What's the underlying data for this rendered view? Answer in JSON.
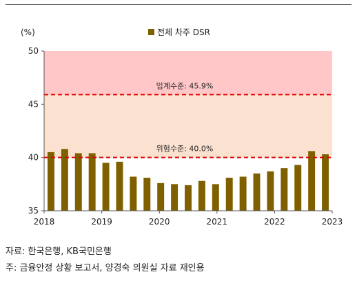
{
  "chart_data": {
    "type": "bar",
    "y_unit_label": "(%)",
    "ylim": [
      35,
      50
    ],
    "y_ticks": [
      "50",
      "45",
      "40",
      "35"
    ],
    "x_tick_labels": [
      "2018",
      "2019",
      "2020",
      "2021",
      "2022",
      "2023"
    ],
    "series": [
      {
        "name": "전체 차주 DSR",
        "color": "#7F6000",
        "values": [
          40.5,
          40.8,
          40.4,
          40.4,
          39.5,
          39.6,
          38.2,
          38.1,
          37.6,
          37.5,
          37.4,
          37.8,
          37.5,
          38.1,
          38.2,
          38.5,
          38.7,
          39.0,
          39.3,
          40.6,
          40.3
        ]
      }
    ],
    "reference_lines": [
      {
        "label": "임계수준: 45.9%",
        "value": 45.9,
        "color": "#E00000"
      },
      {
        "label": "위험수준: 40.0%",
        "value": 40.0,
        "color": "#E00000"
      }
    ],
    "bands": [
      {
        "from": 45.9,
        "to": 50,
        "color": "#FFC7C7"
      },
      {
        "from": 40.0,
        "to": 45.9,
        "color": "#FBE1CF"
      }
    ],
    "legend_position": "top-center"
  },
  "footer": {
    "source": "자료: 한국은행, KB국민은행",
    "note": "주: 금융안정 상황 보고서, 양경숙 의원실 자료 재인용"
  }
}
